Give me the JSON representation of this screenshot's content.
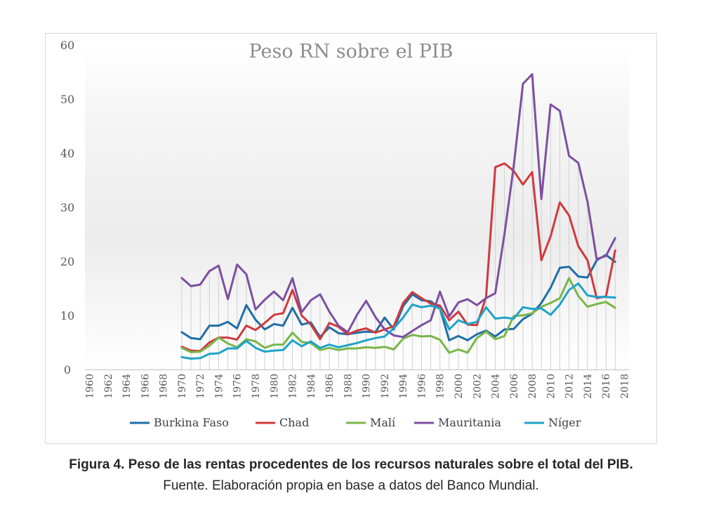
{
  "chart_data": {
    "type": "line",
    "title": "Peso RN sobre el PIB",
    "xlabel": "",
    "ylabel": "",
    "ylim": [
      0,
      60
    ],
    "yticks": [
      0,
      10,
      20,
      30,
      40,
      50,
      60
    ],
    "xtick_labels": [
      "1960",
      "1962",
      "1964",
      "1966",
      "1968",
      "1970",
      "1972",
      "1974",
      "1976",
      "1978",
      "1980",
      "1982",
      "1984",
      "1986",
      "1988",
      "1990",
      "1992",
      "1994",
      "1996",
      "1998",
      "2000",
      "2002",
      "2004",
      "2006",
      "2008",
      "2010",
      "2012",
      "2014",
      "2016",
      "2018"
    ],
    "x": [
      1970,
      1971,
      1972,
      1973,
      1974,
      1975,
      1976,
      1977,
      1978,
      1979,
      1980,
      1981,
      1982,
      1983,
      1984,
      1985,
      1986,
      1987,
      1988,
      1989,
      1990,
      1991,
      1992,
      1993,
      1994,
      1995,
      1996,
      1997,
      1998,
      1999,
      2000,
      2001,
      2002,
      2003,
      2004,
      2005,
      2006,
      2007,
      2008,
      2009,
      2010,
      2011,
      2012,
      2013,
      2014,
      2015,
      2016,
      2017
    ],
    "legend_position": "bottom",
    "series": [
      {
        "name": "Burkina Faso",
        "color": "#1f6ea8",
        "values": [
          6.9,
          5.8,
          5.6,
          8.1,
          8.1,
          8.8,
          7.6,
          11.9,
          9.2,
          7.4,
          8.4,
          8.1,
          11.4,
          8.3,
          8.7,
          6.0,
          7.8,
          6.7,
          6.5,
          6.8,
          7.0,
          6.9,
          9.6,
          7.4,
          11.7,
          13.9,
          12.8,
          12.6,
          11.3,
          5.4,
          6.2,
          5.4,
          6.5,
          7.2,
          6.1,
          7.4,
          7.5,
          9.3,
          10.3,
          12.3,
          15.1,
          18.8,
          19.0,
          17.2,
          17.0,
          20.2,
          21.2,
          19.9
        ]
      },
      {
        "name": "Chad",
        "color": "#d0393d",
        "values": [
          4.2,
          3.5,
          3.4,
          5.0,
          5.9,
          5.9,
          5.5,
          8.1,
          7.3,
          8.6,
          10.1,
          10.4,
          14.7,
          10.0,
          8.3,
          5.6,
          8.6,
          7.9,
          6.5,
          7.2,
          7.6,
          6.8,
          7.4,
          8.0,
          12.3,
          14.3,
          13.2,
          12.2,
          11.8,
          9.1,
          10.7,
          8.3,
          8.2,
          13.4,
          37.4,
          38.1,
          36.7,
          34.2,
          36.5,
          20.2,
          24.6,
          30.9,
          28.5,
          22.8,
          20.2,
          13.2,
          13.5,
          22.0
        ]
      },
      {
        "name": "Malí",
        "color": "#7ab648",
        "values": [
          4.0,
          3.2,
          3.3,
          4.4,
          5.9,
          4.8,
          4.1,
          5.6,
          5.2,
          4.0,
          4.6,
          4.6,
          6.8,
          5.1,
          4.9,
          3.6,
          4.0,
          3.6,
          3.9,
          3.9,
          4.1,
          4.0,
          4.2,
          3.7,
          5.7,
          6.4,
          6.1,
          6.2,
          5.5,
          3.1,
          3.7,
          3.1,
          5.8,
          7.0,
          5.6,
          6.2,
          9.9,
          10.0,
          10.4,
          11.6,
          12.3,
          13.2,
          16.9,
          13.6,
          11.6,
          12.1,
          12.5,
          11.4
        ]
      },
      {
        "name": "Mauritania",
        "color": "#7d4fa0",
        "values": [
          16.9,
          15.4,
          15.7,
          18.2,
          19.2,
          13.0,
          19.4,
          17.6,
          11.1,
          12.9,
          14.4,
          12.8,
          16.9,
          10.6,
          12.8,
          13.9,
          10.7,
          8.1,
          6.9,
          10.1,
          12.7,
          9.7,
          7.4,
          6.3,
          6.0,
          7.1,
          8.2,
          9.1,
          14.4,
          9.8,
          12.4,
          13.0,
          11.9,
          13.2,
          14.1,
          25.1,
          37.6,
          52.8,
          54.6,
          31.5,
          49.0,
          47.8,
          39.5,
          38.2,
          31.0,
          20.4,
          21.0,
          24.3
        ]
      },
      {
        "name": "Níger",
        "color": "#1fa3c8",
        "values": [
          2.3,
          2.0,
          2.1,
          2.9,
          3.0,
          3.9,
          3.9,
          5.3,
          4.0,
          3.3,
          3.5,
          3.6,
          5.4,
          4.3,
          5.2,
          4.0,
          4.6,
          4.1,
          4.5,
          4.9,
          5.4,
          5.8,
          6.1,
          7.6,
          9.6,
          12.0,
          11.5,
          11.8,
          11.3,
          7.4,
          9.1,
          8.4,
          8.8,
          11.5,
          9.4,
          9.6,
          9.4,
          11.5,
          11.2,
          11.3,
          10.1,
          12.0,
          14.7,
          15.9,
          13.7,
          13.4,
          13.4,
          13.3
        ]
      }
    ]
  },
  "caption": {
    "title": "Figura 4. Peso de las rentas procedentes de los recursos naturales sobre el total del PIB.",
    "source": "Fuente. Elaboración propia en base a datos del Banco Mundial."
  }
}
